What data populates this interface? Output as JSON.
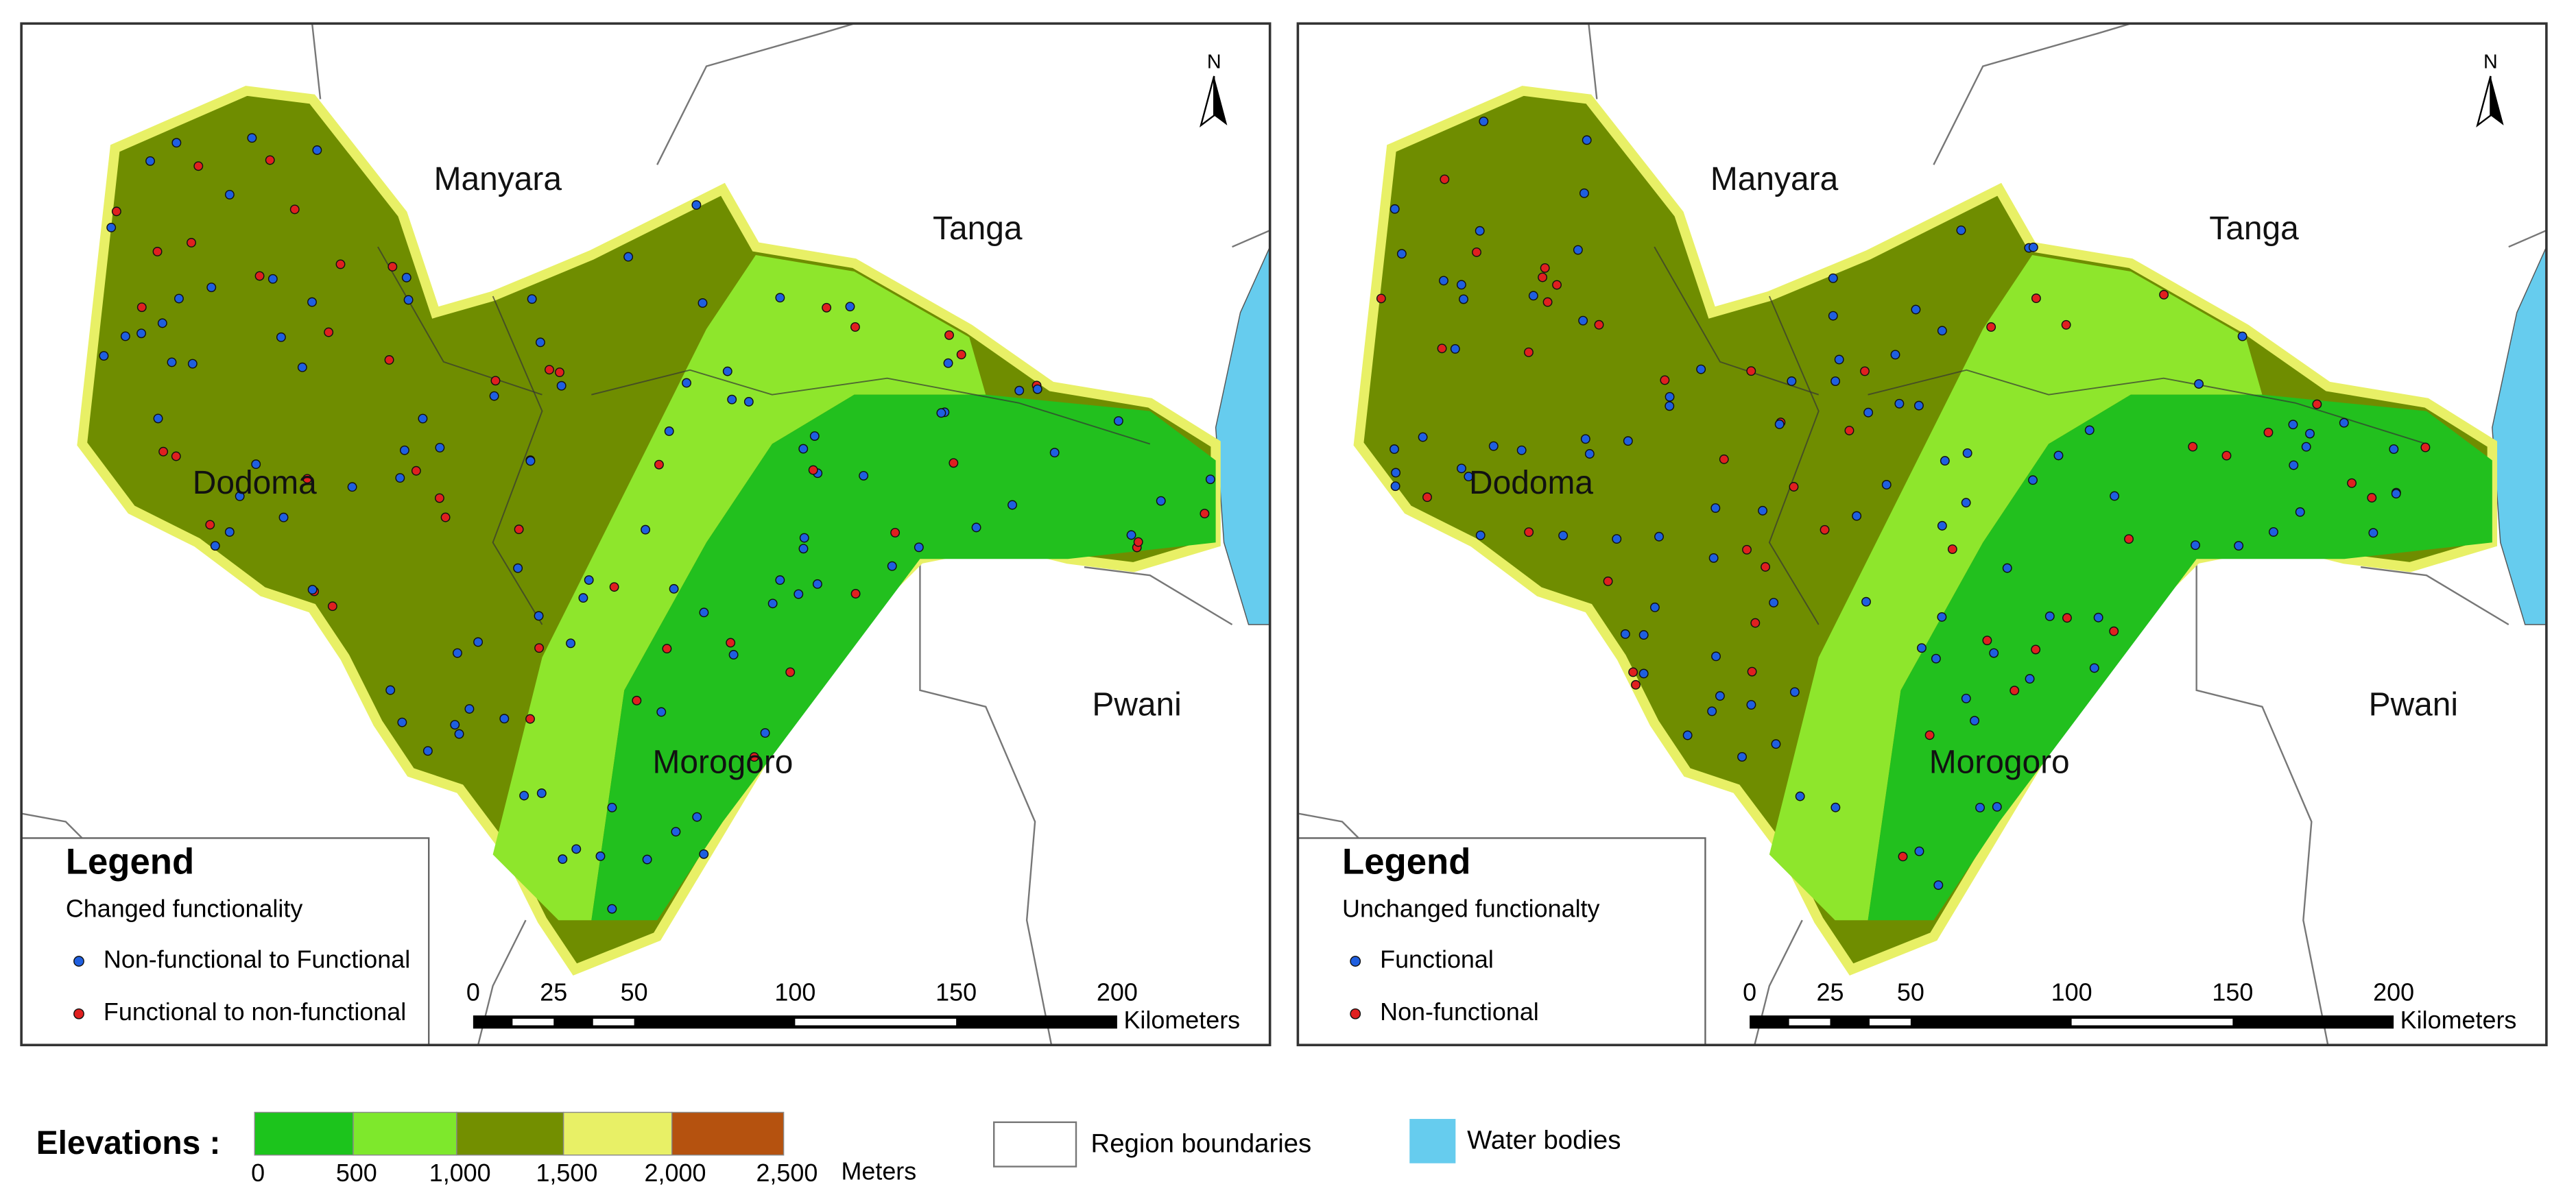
{
  "panels": [
    {
      "regions": [
        "Manyara",
        "Tanga",
        "Dodoma",
        "Morogoro",
        "Pwani"
      ],
      "north": "N",
      "legend": {
        "title": "Legend",
        "subtitle": "Changed functionality",
        "items": [
          "Non-functional to Functional",
          "Functional to non-functional"
        ]
      },
      "scale": {
        "ticks": [
          "0",
          "25",
          "50",
          "100",
          "150",
          "200"
        ],
        "unit": "Kilometers"
      }
    },
    {
      "regions": [
        "Manyara",
        "Tanga",
        "Dodoma",
        "Morogoro",
        "Pwani"
      ],
      "north": "N",
      "legend": {
        "title": "Legend",
        "subtitle": "Unchanged functionalty",
        "items": [
          "Functional",
          "Non-functional"
        ]
      },
      "scale": {
        "ticks": [
          "0",
          "25",
          "50",
          "100",
          "150",
          "200"
        ],
        "unit": "Kilometers"
      }
    }
  ],
  "elevation_legend": {
    "title": "Elevations :",
    "ticks": [
      "0",
      "500",
      "1,000",
      "1,500",
      "2,000",
      "2,500"
    ],
    "unit": "Meters"
  },
  "other_legend": [
    "Region boundaries",
    "Water bodies"
  ]
}
